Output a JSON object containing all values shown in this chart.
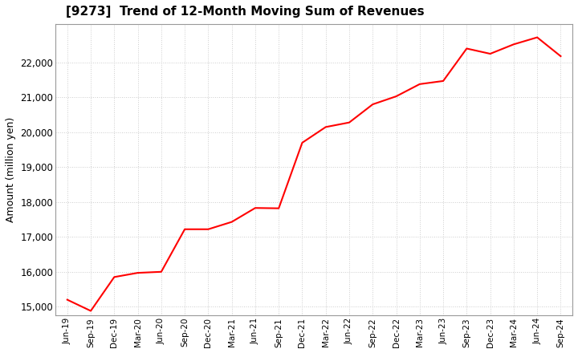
{
  "title": "[9273]  Trend of 12-Month Moving Sum of Revenues",
  "ylabel": "Amount (million yen)",
  "line_color": "#ff0000",
  "background_color": "#ffffff",
  "grid_color": "#cccccc",
  "ylim": [
    14750,
    23100
  ],
  "yticks": [
    15000,
    16000,
    17000,
    18000,
    19000,
    20000,
    21000,
    22000
  ],
  "labels": [
    "Jun-19",
    "Sep-19",
    "Dec-19",
    "Mar-20",
    "Jun-20",
    "Sep-20",
    "Dec-20",
    "Mar-21",
    "Jun-21",
    "Sep-21",
    "Dec-21",
    "Mar-22",
    "Jun-22",
    "Sep-22",
    "Dec-22",
    "Mar-23",
    "Jun-23",
    "Sep-23",
    "Dec-23",
    "Mar-24",
    "Jun-24",
    "Sep-24"
  ],
  "values": [
    15200,
    14880,
    15850,
    15970,
    16000,
    17220,
    17220,
    17430,
    17830,
    17820,
    19700,
    20150,
    20280,
    20800,
    21030,
    21380,
    21470,
    22400,
    22250,
    22520,
    22720,
    22180
  ]
}
